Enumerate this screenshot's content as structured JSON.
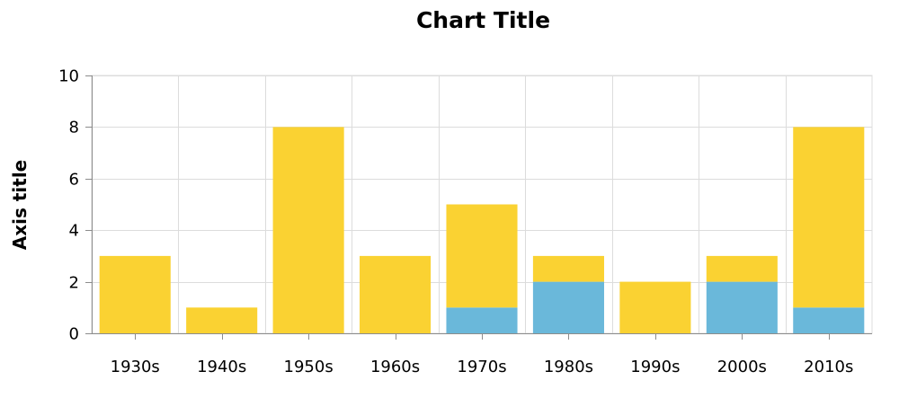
{
  "chart_data": {
    "type": "bar",
    "stacked": true,
    "title": "Chart Title",
    "xlabel": "",
    "ylabel": "Axis title",
    "ylim": [
      0,
      10
    ],
    "yticks": [
      0,
      2,
      4,
      6,
      8,
      10
    ],
    "grid": true,
    "legend": "none",
    "categories": [
      "1930s",
      "1940s",
      "1950s",
      "1960s",
      "1970s",
      "1980s",
      "1990s",
      "2000s",
      "2010s"
    ],
    "series": [
      {
        "color": "#6ab8da",
        "values": [
          0,
          0,
          0,
          0,
          1,
          2,
          0,
          2,
          1
        ]
      },
      {
        "color": "#fad232",
        "values": [
          3,
          1,
          8,
          3,
          4,
          1,
          2,
          1,
          7
        ]
      }
    ]
  }
}
